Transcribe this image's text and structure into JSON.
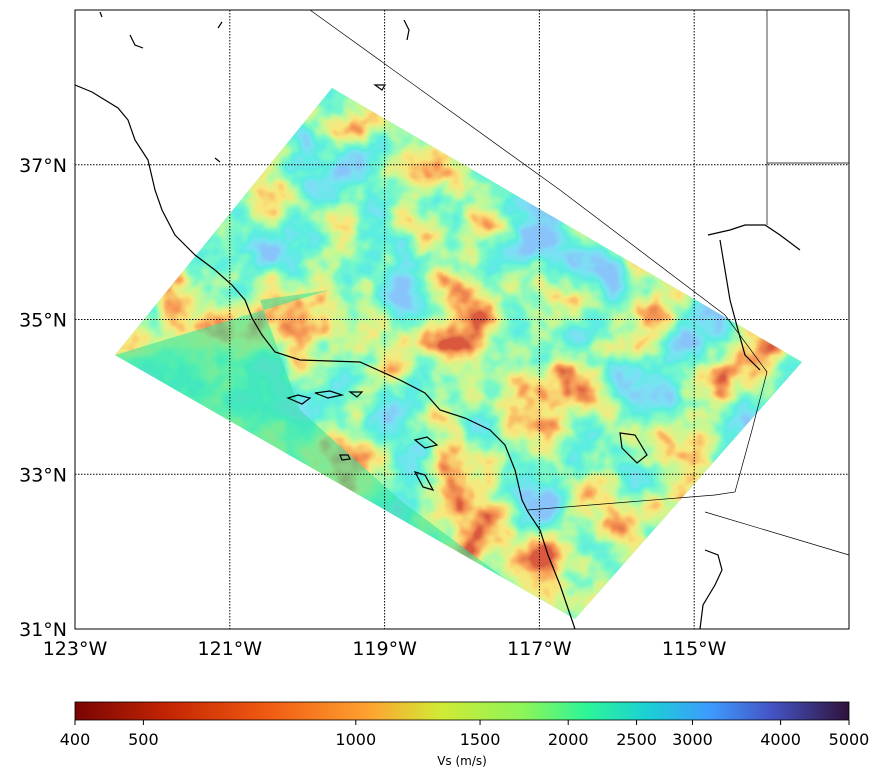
{
  "map": {
    "xlim": [
      -123,
      -113
    ],
    "ylim": [
      31,
      39
    ],
    "xticks": [
      {
        "value": -123,
        "label": "123°W"
      },
      {
        "value": -121,
        "label": "121°W"
      },
      {
        "value": -119,
        "label": "119°W"
      },
      {
        "value": -117,
        "label": "117°W"
      },
      {
        "value": -115,
        "label": "115°W"
      }
    ],
    "yticks": [
      {
        "value": 31,
        "label": "31°N"
      },
      {
        "value": 33,
        "label": "33°N"
      },
      {
        "value": 35,
        "label": "35°N"
      },
      {
        "value": 37,
        "label": "37°N"
      }
    ],
    "colorbar": {
      "label": "Vs (m/s)",
      "scale": "log",
      "lim": [
        400,
        5000
      ],
      "ticks": [
        400,
        500,
        1000,
        1500,
        2000,
        2500,
        3000,
        4000,
        5000
      ]
    }
  }
}
